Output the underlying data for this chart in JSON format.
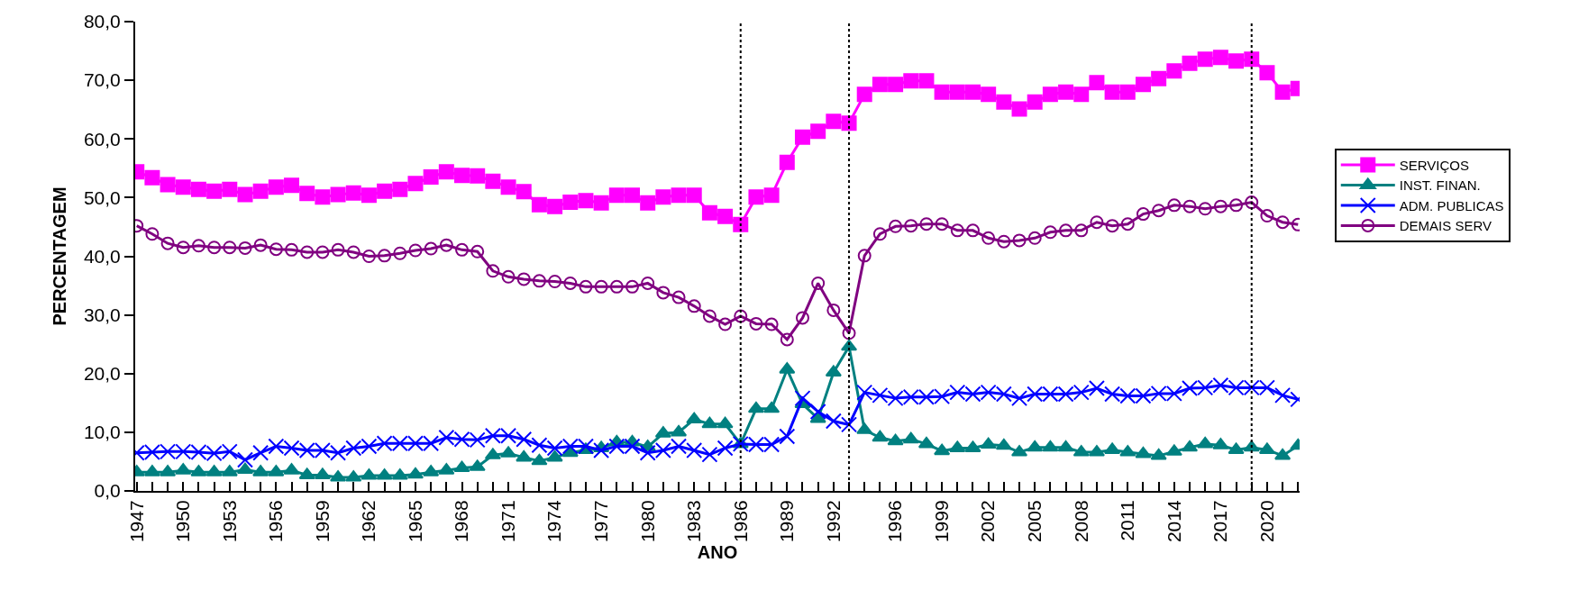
{
  "chart_data": {
    "type": "line",
    "xlabel": "ANO",
    "ylabel": "PERCENTAGEM",
    "x": [
      1947,
      1948,
      1949,
      1950,
      1951,
      1952,
      1953,
      1954,
      1955,
      1956,
      1957,
      1958,
      1959,
      1960,
      1961,
      1962,
      1963,
      1964,
      1965,
      1966,
      1967,
      1968,
      1969,
      1970,
      1971,
      1972,
      1973,
      1974,
      1975,
      1976,
      1977,
      1978,
      1979,
      1980,
      1981,
      1982,
      1983,
      1984,
      1985,
      1986,
      1987,
      1988,
      1989,
      1990,
      1991,
      1992,
      1993,
      1994,
      1995,
      1996,
      1997,
      1998,
      1999,
      2000,
      2001,
      2002,
      2003,
      2004,
      2005,
      2006,
      2007,
      2008,
      2009,
      2010,
      2011,
      2012,
      2013,
      2014,
      2015,
      2016,
      2017,
      2018,
      2019,
      2020,
      2021,
      2022
    ],
    "series": [
      {
        "name": "SERVIÇOS",
        "color": "#ff00ff",
        "marker": "square",
        "values": [
          54.4,
          53.4,
          52.2,
          51.8,
          51.4,
          51.1,
          51.4,
          50.5,
          51.1,
          51.8,
          52.1,
          50.7,
          50.1,
          50.5,
          50.8,
          50.4,
          51.1,
          51.4,
          52.4,
          53.5,
          54.4,
          53.8,
          53.7,
          52.8,
          51.8,
          51.0,
          48.8,
          48.5,
          49.2,
          49.5,
          49.1,
          50.4,
          50.4,
          49.1,
          50.1,
          50.4,
          50.4,
          47.4,
          46.8,
          45.4,
          50.1,
          50.4,
          56.0,
          60.3,
          61.3,
          63.0,
          62.7,
          67.6,
          69.3,
          69.3,
          69.9,
          69.9,
          68.0,
          68.0,
          68.0,
          67.6,
          66.3,
          65.1,
          66.3,
          67.6,
          68.0,
          67.6,
          69.6,
          68.0,
          68.0,
          69.3,
          70.3,
          71.6,
          72.9,
          73.6,
          73.9,
          73.3,
          73.6,
          71.3,
          68.0,
          68.6
        ]
      },
      {
        "name": "INST. FINAN.",
        "color": "#008080",
        "marker": "triangle",
        "values": [
          3.2,
          3.2,
          3.2,
          3.5,
          3.2,
          3.2,
          3.2,
          3.6,
          3.2,
          3.2,
          3.5,
          2.7,
          2.7,
          2.3,
          2.3,
          2.6,
          2.6,
          2.6,
          2.8,
          3.2,
          3.5,
          3.9,
          4.1,
          6.1,
          6.4,
          5.7,
          5.1,
          5.7,
          6.5,
          7.0,
          7.3,
          8.3,
          8.3,
          7.5,
          9.8,
          10.0,
          12.2,
          11.4,
          11.4,
          8.0,
          14.0,
          14.0,
          20.7,
          14.8,
          12.3,
          20.2,
          24.6,
          10.4,
          9.1,
          8.5,
          8.8,
          8.0,
          6.8,
          7.3,
          7.3,
          7.9,
          7.7,
          6.6,
          7.4,
          7.4,
          7.4,
          6.6,
          6.6,
          7.0,
          6.6,
          6.3,
          6.0,
          6.7,
          7.4,
          8.0,
          7.8,
          7.0,
          7.4,
          7.0,
          6.0,
          7.7
        ]
      },
      {
        "name": "ADM. PUBLICAS",
        "color": "#0000ff",
        "marker": "cross",
        "values": [
          6.5,
          6.6,
          6.7,
          6.7,
          6.6,
          6.4,
          6.7,
          5.3,
          6.5,
          7.6,
          7.3,
          6.9,
          6.9,
          6.5,
          7.3,
          7.6,
          8.1,
          8.1,
          8.1,
          8.1,
          9.1,
          8.8,
          8.7,
          9.4,
          9.4,
          8.8,
          7.8,
          7.3,
          7.6,
          7.6,
          6.9,
          7.6,
          7.6,
          6.5,
          6.9,
          7.6,
          6.9,
          6.2,
          7.3,
          8.0,
          7.9,
          7.9,
          9.3,
          15.8,
          13.5,
          11.9,
          11.3,
          16.8,
          16.3,
          15.8,
          16.0,
          16.0,
          16.1,
          16.8,
          16.5,
          16.8,
          16.5,
          15.8,
          16.5,
          16.5,
          16.5,
          16.8,
          17.5,
          16.5,
          16.2,
          16.2,
          16.6,
          16.6,
          17.5,
          17.6,
          18.0,
          17.6,
          17.6,
          17.6,
          16.3,
          15.6
        ]
      },
      {
        "name": "DEMAIS SERV",
        "color": "#800080",
        "marker": "circle",
        "values": [
          45.2,
          43.8,
          42.2,
          41.5,
          41.8,
          41.5,
          41.5,
          41.4,
          41.9,
          41.2,
          41.1,
          40.7,
          40.7,
          41.1,
          40.7,
          40.0,
          40.1,
          40.5,
          41.0,
          41.3,
          41.9,
          41.1,
          40.8,
          37.5,
          36.5,
          36.1,
          35.8,
          35.7,
          35.4,
          34.8,
          34.8,
          34.8,
          34.8,
          35.4,
          33.8,
          33.0,
          31.5,
          29.8,
          28.4,
          29.8,
          28.5,
          28.4,
          25.8,
          29.5,
          35.4,
          30.8,
          26.9,
          40.1,
          43.8,
          45.1,
          45.2,
          45.5,
          45.5,
          44.4,
          44.4,
          43.1,
          42.5,
          42.7,
          43.1,
          44.1,
          44.4,
          44.4,
          45.8,
          45.2,
          45.5,
          47.2,
          47.8,
          48.7,
          48.5,
          48.1,
          48.5,
          48.7,
          49.2,
          46.9,
          45.8,
          45.4
        ]
      }
    ],
    "xlim": [
      1946.9,
      2022.1
    ],
    "xticks": [
      1947,
      {
        "value": 1948,
        "label": null
      },
      {
        "value": 1949,
        "label": null
      },
      1950,
      {
        "value": 1951,
        "label": null
      },
      {
        "value": 1952,
        "label": null
      },
      1953,
      {
        "value": 1954,
        "label": null
      },
      {
        "value": 1955,
        "label": null
      },
      1956,
      {
        "value": 1957,
        "label": null
      },
      {
        "value": 1958,
        "label": null
      },
      1959,
      {
        "value": 1960,
        "label": null
      },
      {
        "value": 1961,
        "label": null
      },
      1962,
      {
        "value": 1963,
        "label": null
      },
      {
        "value": 1964,
        "label": null
      },
      1965,
      {
        "value": 1966,
        "label": null
      },
      {
        "value": 1967,
        "label": null
      },
      1968,
      {
        "value": 1969,
        "label": null
      },
      {
        "value": 1970,
        "label": null
      },
      1971,
      {
        "value": 1972,
        "label": null
      },
      {
        "value": 1973,
        "label": null
      },
      1974,
      {
        "value": 1975,
        "label": null
      },
      {
        "value": 1976,
        "label": null
      },
      1977,
      {
        "value": 1978,
        "label": null
      },
      {
        "value": 1979,
        "label": null
      },
      1980,
      {
        "value": 1981,
        "label": null
      },
      {
        "value": 1982,
        "label": null
      },
      1983,
      {
        "value": 1984,
        "label": null
      },
      {
        "value": 1985,
        "label": null
      },
      1986,
      {
        "value": 1987,
        "label": null
      },
      {
        "value": 1988,
        "label": null
      },
      1989,
      {
        "value": 1990,
        "label": null
      },
      {
        "value": 1991,
        "label": null
      },
      1992,
      {
        "value": 1993,
        "label": null
      },
      {
        "value": 1994,
        "label": null
      },
      1996,
      {
        "value": 1995,
        "label": null
      },
      {
        "value": 1997,
        "label": null
      },
      {
        "value": 1998,
        "label": null
      },
      1999,
      {
        "value": 2000,
        "label": null
      },
      {
        "value": 2001,
        "label": null
      },
      2002,
      {
        "value": 2003,
        "label": null
      },
      {
        "value": 2004,
        "label": null
      },
      2005,
      {
        "value": 2006,
        "label": null
      },
      {
        "value": 2007,
        "label": null
      },
      2008,
      {
        "value": 2009,
        "label": null
      },
      {
        "value": 2010,
        "label": null
      },
      2011,
      {
        "value": 2012,
        "label": null
      },
      {
        "value": 2013,
        "label": null
      },
      2014,
      {
        "value": 2015,
        "label": null
      },
      {
        "value": 2016,
        "label": null
      },
      2017,
      {
        "value": 2018,
        "label": null
      },
      {
        "value": 2019,
        "label": null
      },
      2020,
      {
        "value": 2021,
        "label": null
      },
      {
        "value": 2022,
        "label": null
      }
    ],
    "ylim": [
      0,
      80
    ],
    "yticks": [
      {
        "value": 0,
        "label": "0,0"
      },
      {
        "value": 10,
        "label": "10,0"
      },
      {
        "value": 20,
        "label": "20,0"
      },
      {
        "value": 30,
        "label": "30,0"
      },
      {
        "value": 40,
        "label": "40,0"
      },
      {
        "value": 50,
        "label": "50,0"
      },
      {
        "value": 60,
        "label": "60,0"
      },
      {
        "value": 70,
        "label": "70,0"
      },
      {
        "value": 80,
        "label": "80,0"
      }
    ],
    "ref_lines": [
      {
        "axis": "x",
        "value": 1986,
        "color": "#000000",
        "line_style": "dotted"
      },
      {
        "axis": "x",
        "value": 1993,
        "color": "#000000",
        "line_style": "dotted"
      },
      {
        "axis": "x",
        "value": 2019,
        "color": "#000000",
        "line_style": "dotted"
      }
    ],
    "legend": "right"
  }
}
